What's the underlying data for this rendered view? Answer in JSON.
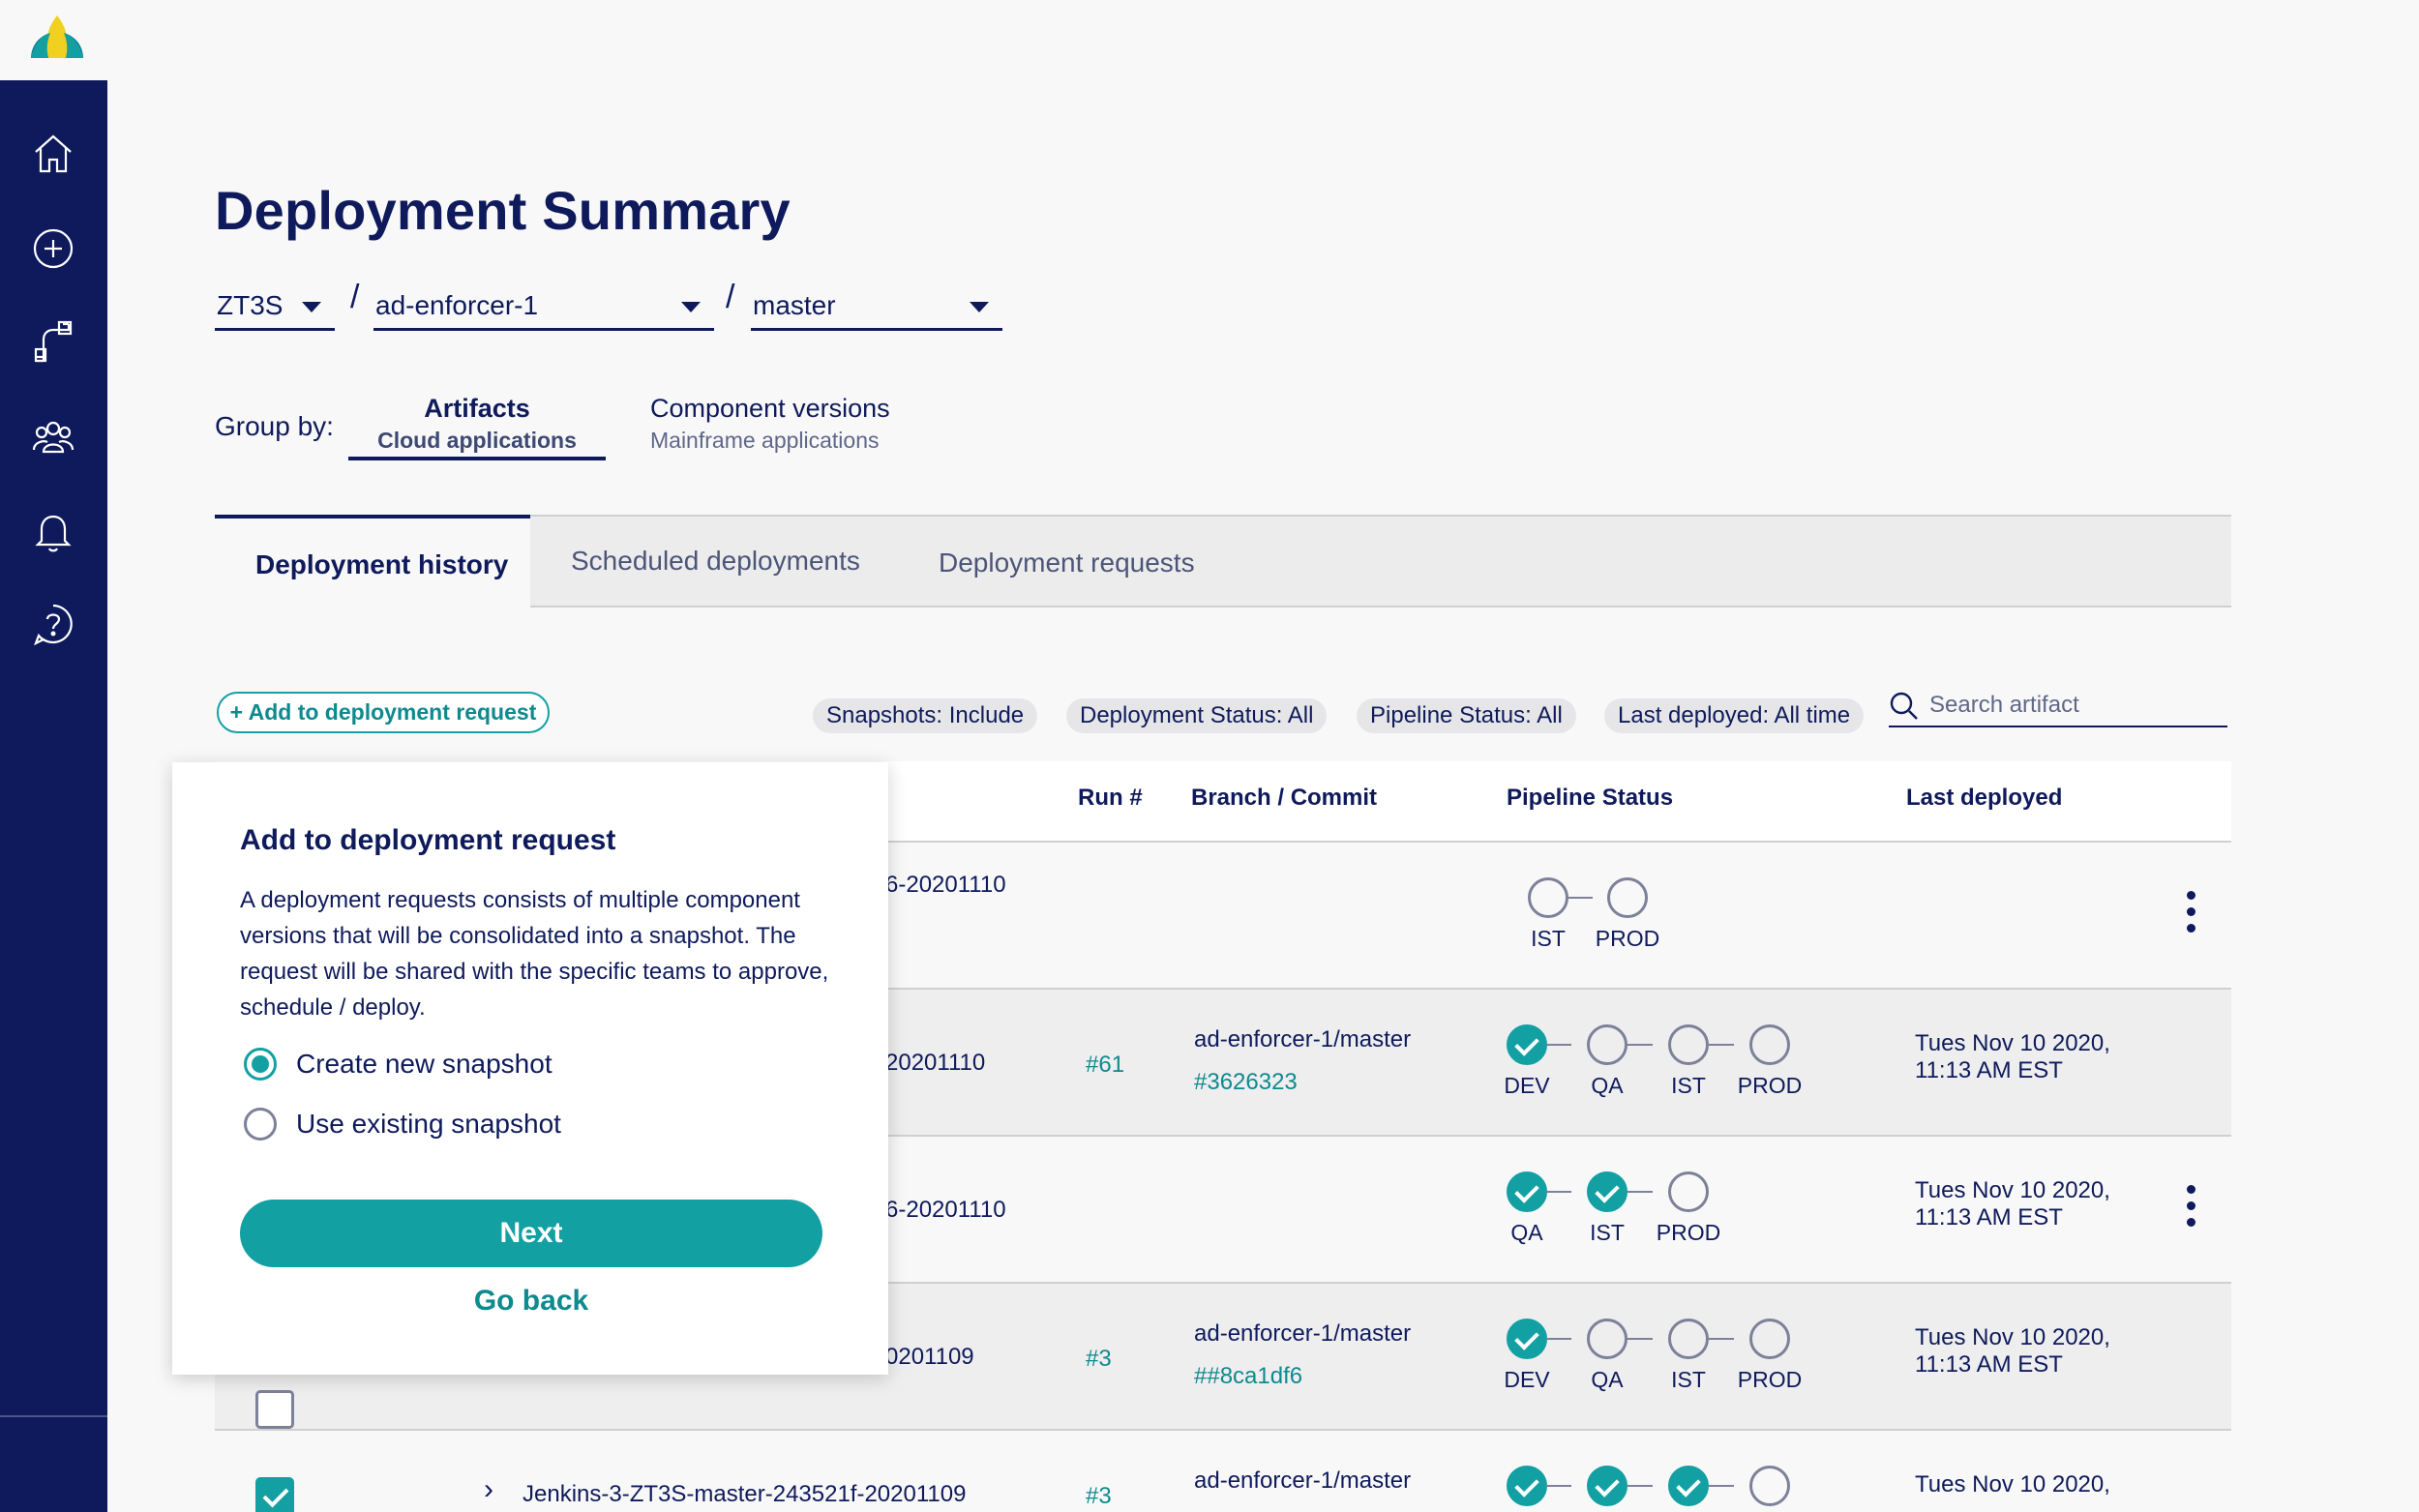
{
  "page": {
    "title": "Deployment Summary"
  },
  "breadcrumb": {
    "org": "ZT3S",
    "repo": "ad-enforcer-1",
    "branch": "master",
    "separator": "/"
  },
  "group_by": {
    "label": "Group by:",
    "options": [
      {
        "title": "Artifacts",
        "subtitle": "Cloud applications",
        "selected": true
      },
      {
        "title": "Component versions",
        "subtitle": "Mainframe applications",
        "selected": false
      }
    ]
  },
  "tabs": [
    {
      "label": "Deployment history",
      "active": true
    },
    {
      "label": "Scheduled deployments",
      "active": false
    },
    {
      "label": "Deployment requests",
      "active": false
    }
  ],
  "toolbar": {
    "add_button": "+ Add to deployment request",
    "filters": [
      "Snapshots: Include",
      "Deployment Status: All",
      "Pipeline Status: All",
      "Last deployed: All time"
    ],
    "search_placeholder": "Search artifact"
  },
  "table": {
    "columns": [
      "Run #",
      "Branch / Commit",
      "Pipeline Status",
      "Last deployed"
    ],
    "rows": [
      {
        "artifact": "6-20201110",
        "run": "",
        "branch": "",
        "commit": "",
        "stages": [
          {
            "name": "IST",
            "done": false
          },
          {
            "name": "PROD",
            "done": false
          }
        ],
        "last_deployed": [
          "",
          ""
        ],
        "menu": true
      },
      {
        "artifact": "20201110",
        "run": "#61",
        "branch": "ad-enforcer-1/master",
        "commit": "#3626323",
        "stages": [
          {
            "name": "DEV",
            "done": true
          },
          {
            "name": "QA",
            "done": false
          },
          {
            "name": "IST",
            "done": false
          },
          {
            "name": "PROD",
            "done": false
          }
        ],
        "last_deployed": [
          "Tues Nov 10 2020,",
          "11:13 AM EST"
        ],
        "menu": false
      },
      {
        "artifact": "6-20201110",
        "run": "",
        "branch": "",
        "commit": "",
        "stages": [
          {
            "name": "QA",
            "done": true
          },
          {
            "name": "IST",
            "done": true
          },
          {
            "name": "PROD",
            "done": false
          }
        ],
        "last_deployed": [
          "Tues Nov 10 2020,",
          "11:13 AM EST"
        ],
        "menu": true
      },
      {
        "artifact": "0201109",
        "run": "#3",
        "branch": "ad-enforcer-1/master",
        "commit": "##8ca1df6",
        "stages": [
          {
            "name": "DEV",
            "done": true
          },
          {
            "name": "QA",
            "done": false
          },
          {
            "name": "IST",
            "done": false
          },
          {
            "name": "PROD",
            "done": false
          }
        ],
        "last_deployed": [
          "Tues Nov 10 2020,",
          "11:13 AM EST"
        ],
        "menu": false
      },
      {
        "artifact": "Jenkins-3-ZT3S-master-243521f-20201109",
        "run": "#3",
        "branch": "ad-enforcer-1/master",
        "commit": "",
        "stages": [
          {
            "name": "",
            "done": true
          },
          {
            "name": "",
            "done": true
          },
          {
            "name": "",
            "done": true
          },
          {
            "name": "",
            "done": false
          }
        ],
        "last_deployed": [
          "Tues Nov 10 2020,",
          ""
        ],
        "menu": false
      }
    ]
  },
  "popover": {
    "title": "Add to deployment request",
    "description": "A deployment requests consists of multiple component versions that will be consolidated into a snapshot. The request will be shared with the specific teams to approve, schedule / deploy.",
    "options": [
      {
        "label": "Create new snapshot",
        "selected": true
      },
      {
        "label": "Use existing snapshot",
        "selected": false
      }
    ],
    "next_label": "Next",
    "back_label": "Go back"
  },
  "sidebar": {
    "items": [
      "home-icon",
      "add-circle-icon",
      "pipeline-icon",
      "teams-icon",
      "notifications-icon",
      "help-icon"
    ],
    "expand": "expand-icon"
  },
  "colors": {
    "navy": "#0e1a5b",
    "teal": "#13a0a3"
  }
}
